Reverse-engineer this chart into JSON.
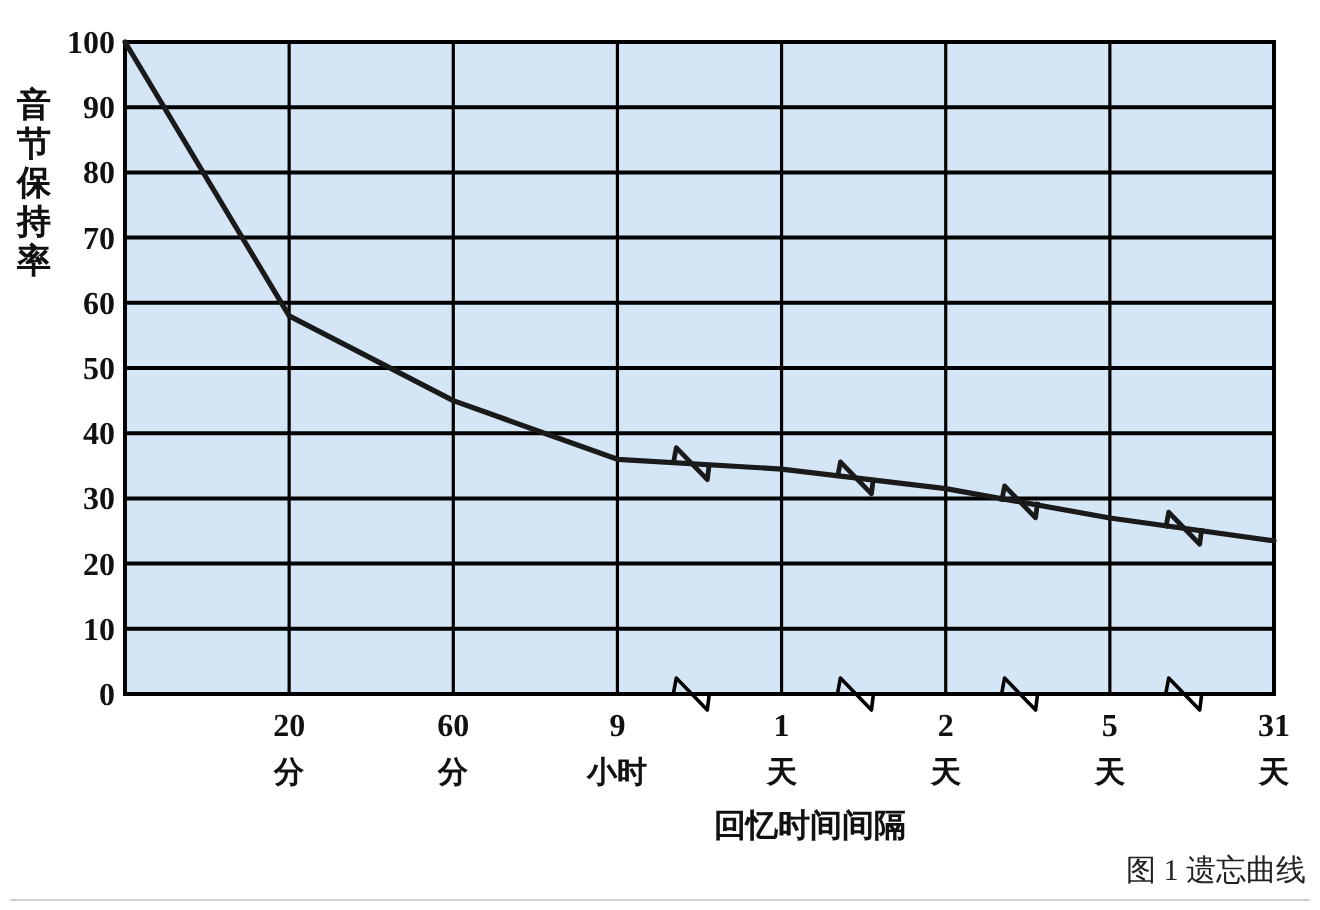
{
  "chart_data": {
    "type": "line",
    "xlabel": "回忆时间间隔",
    "ylabel": "音节保持率",
    "annotations": [
      "图 1 遗忘曲线"
    ],
    "categories": [
      null,
      "20分",
      "60分",
      "9小时",
      "1天",
      "2天",
      "5天",
      "31天"
    ],
    "values": [
      100,
      58,
      45,
      36,
      34.5,
      31.5,
      27,
      23.5
    ],
    "color": "#1a1a1a",
    "ylim": [
      0,
      100
    ],
    "yticks": [
      0,
      10,
      20,
      30,
      40,
      50,
      60,
      70,
      80,
      90,
      100
    ],
    "grid": true
  }
}
